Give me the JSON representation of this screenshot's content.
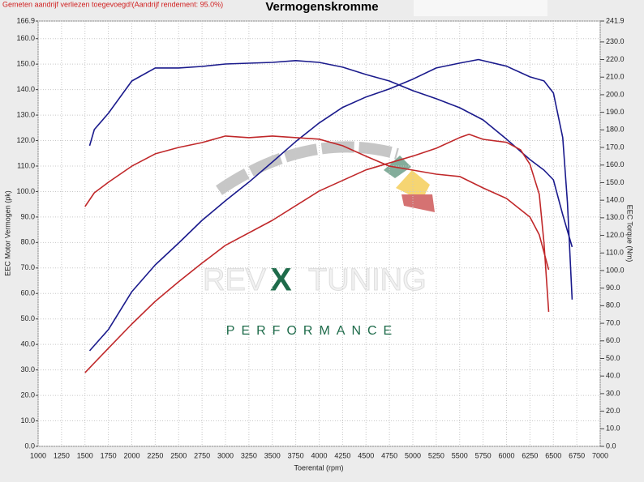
{
  "chart_data": {
    "type": "line",
    "title": "Vermogenskromme",
    "subtitle": "Gemeten aandrijf verliezen toegevoegd!(Aandrijf rendement: 95.0%)",
    "x_label": "Toerental (rpm)",
    "y_label": "EEC Motor Vermogen (pk)",
    "y2_label": "EEC Torque (Nm)",
    "logo": [
      "REV",
      "X",
      "TUNING",
      "PERFORMANCE"
    ],
    "grid": true,
    "xlim": [
      1000,
      7000
    ],
    "xticks": [
      1000,
      1250,
      1500,
      1750,
      2000,
      2250,
      2500,
      2750,
      3000,
      3250,
      3500,
      3750,
      4000,
      4250,
      4500,
      4750,
      5000,
      5250,
      5500,
      5750,
      6000,
      6250,
      6500,
      6750,
      7000
    ],
    "ylim": [
      0,
      166.9
    ],
    "yticks": [
      {
        "value": 0,
        "label": "0.0"
      },
      {
        "value": 10,
        "label": "10.0"
      },
      {
        "value": 20,
        "label": "20.0"
      },
      {
        "value": 30,
        "label": "30.0"
      },
      {
        "value": 40,
        "label": "40.0"
      },
      {
        "value": 50,
        "label": "50.0"
      },
      {
        "value": 60,
        "label": "60.0"
      },
      {
        "value": 70,
        "label": "70.0"
      },
      {
        "value": 80,
        "label": "80.0"
      },
      {
        "value": 90,
        "label": "90.0"
      },
      {
        "value": 100,
        "label": "100.0"
      },
      {
        "value": 110,
        "label": "110.0"
      },
      {
        "value": 120,
        "label": "120.0"
      },
      {
        "value": 130,
        "label": "130.0"
      },
      {
        "value": 140,
        "label": "140.0"
      },
      {
        "value": 150,
        "label": "150.0"
      },
      {
        "value": 160,
        "label": "160.0"
      },
      166.9
    ],
    "y2lim": [
      0,
      241.9
    ],
    "y2ticks": [
      {
        "value": 0,
        "label": "0.0"
      },
      {
        "value": 10,
        "label": "10.0"
      },
      {
        "value": 20,
        "label": "20.0"
      },
      {
        "value": 30,
        "label": "30.0"
      },
      {
        "value": 40,
        "label": "40.0"
      },
      {
        "value": 50,
        "label": "50.0"
      },
      {
        "value": 60,
        "label": "60.0"
      },
      {
        "value": 70,
        "label": "70.0"
      },
      {
        "value": 80,
        "label": "80.0"
      },
      {
        "value": 90,
        "label": "90.0"
      },
      {
        "value": 100,
        "label": "100.0"
      },
      {
        "value": 110,
        "label": "110.0"
      },
      {
        "value": 120,
        "label": "120.0"
      },
      {
        "value": 130,
        "label": "130.0"
      },
      {
        "value": 140,
        "label": "140.0"
      },
      {
        "value": 150,
        "label": "150.0"
      },
      {
        "value": 160,
        "label": "160.0"
      },
      {
        "value": 170,
        "label": "170.0"
      },
      {
        "value": 180,
        "label": "180.0"
      },
      {
        "value": 190,
        "label": "190.0"
      },
      {
        "value": 200,
        "label": "200.0"
      },
      {
        "value": 210,
        "label": "210.0"
      },
      {
        "value": 220,
        "label": "220.0"
      },
      {
        "value": 230,
        "label": "230.0"
      },
      241.9
    ],
    "series": [
      {
        "color": "#1a1a8c",
        "axis": "y",
        "x": [
          1550,
          1750,
          2000,
          2250,
          2500,
          2750,
          3000,
          3250,
          3500,
          3750,
          4000,
          4250,
          4500,
          4750,
          5000,
          5250,
          5500,
          5700,
          6000,
          6250,
          6400,
          6500,
          6600,
          6650,
          6700
        ],
        "values": [
          37.5,
          45.8,
          60.7,
          71.2,
          79.8,
          88.7,
          96.4,
          103.7,
          111.6,
          119.6,
          126.9,
          133.0,
          137.1,
          140.3,
          144.1,
          148.5,
          150.4,
          151.8,
          149.2,
          145.0,
          143.4,
          138.7,
          121.2,
          95.7,
          57.6
        ]
      },
      {
        "color": "#1a1a8c",
        "axis": "y2",
        "x": [
          1550,
          1600,
          1750,
          2000,
          2250,
          2500,
          2750,
          3000,
          3500,
          3750,
          4000,
          4250,
          4500,
          4750,
          5000,
          5250,
          5500,
          5750,
          6000,
          6250,
          6400,
          6500,
          6600,
          6700
        ],
        "values": [
          171.0,
          180.2,
          189.4,
          207.8,
          215.2,
          215.2,
          216.1,
          217.5,
          218.4,
          219.4,
          218.4,
          215.7,
          211.5,
          207.8,
          202.3,
          197.7,
          192.6,
          185.7,
          174.7,
          163.1,
          157.1,
          151.6,
          131.8,
          113.4
        ]
      },
      {
        "color": "#c0282a",
        "axis": "y",
        "x": [
          1500,
          1750,
          2000,
          2250,
          2500,
          2750,
          3000,
          3500,
          4000,
          4500,
          5000,
          5250,
          5500,
          5600,
          5750,
          6000,
          6150,
          6250,
          6350,
          6400,
          6450
        ],
        "values": [
          28.9,
          38.5,
          48.0,
          56.9,
          64.6,
          71.9,
          78.9,
          88.7,
          100.2,
          108.5,
          113.9,
          117.0,
          121.2,
          122.5,
          120.5,
          119.3,
          116.4,
          110.7,
          98.9,
          79.8,
          52.8
        ]
      },
      {
        "color": "#c0282a",
        "axis": "y2",
        "x": [
          1500,
          1600,
          1750,
          2000,
          2250,
          2500,
          2750,
          3000,
          3250,
          3500,
          4000,
          4250,
          4500,
          4750,
          5000,
          5250,
          5500,
          5750,
          6000,
          6250,
          6350,
          6450
        ],
        "values": [
          136.4,
          144.2,
          150.2,
          159.4,
          166.4,
          170.0,
          172.8,
          176.5,
          175.6,
          176.5,
          174.7,
          171.0,
          165.0,
          159.4,
          157.1,
          154.8,
          153.5,
          147.0,
          141.0,
          130.4,
          120.3,
          100.5
        ]
      }
    ]
  }
}
